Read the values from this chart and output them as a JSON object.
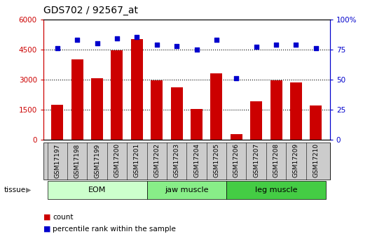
{
  "title": "GDS702 / 92567_at",
  "samples": [
    "GSM17197",
    "GSM17198",
    "GSM17199",
    "GSM17200",
    "GSM17201",
    "GSM17202",
    "GSM17203",
    "GSM17204",
    "GSM17205",
    "GSM17206",
    "GSM17207",
    "GSM17208",
    "GSM17209",
    "GSM17210"
  ],
  "counts": [
    1750,
    4000,
    3050,
    4450,
    5000,
    2950,
    2600,
    1550,
    3300,
    280,
    1900,
    2950,
    2850,
    1700
  ],
  "percentiles": [
    76,
    83,
    80,
    84,
    85,
    79,
    78,
    75,
    83,
    51,
    77,
    79,
    79,
    76
  ],
  "bar_color": "#cc0000",
  "dot_color": "#0000cc",
  "ylim_left": [
    0,
    6000
  ],
  "ylim_right": [
    0,
    100
  ],
  "yticks_left": [
    0,
    1500,
    3000,
    4500,
    6000
  ],
  "yticks_right": [
    0,
    25,
    50,
    75,
    100
  ],
  "grid_values": [
    1500,
    3000,
    4500
  ],
  "tissue_groups": [
    {
      "label": "EOM",
      "start": 0,
      "end": 5,
      "color": "#ccffcc"
    },
    {
      "label": "jaw muscle",
      "start": 5,
      "end": 9,
      "color": "#88ee88"
    },
    {
      "label": "leg muscle",
      "start": 9,
      "end": 14,
      "color": "#44cc44"
    }
  ],
  "sample_bg_color": "#cccccc",
  "axis_left_color": "#cc0000",
  "axis_right_color": "#0000cc",
  "legend_count_label": "count",
  "legend_percentile_label": "percentile rank within the sample"
}
